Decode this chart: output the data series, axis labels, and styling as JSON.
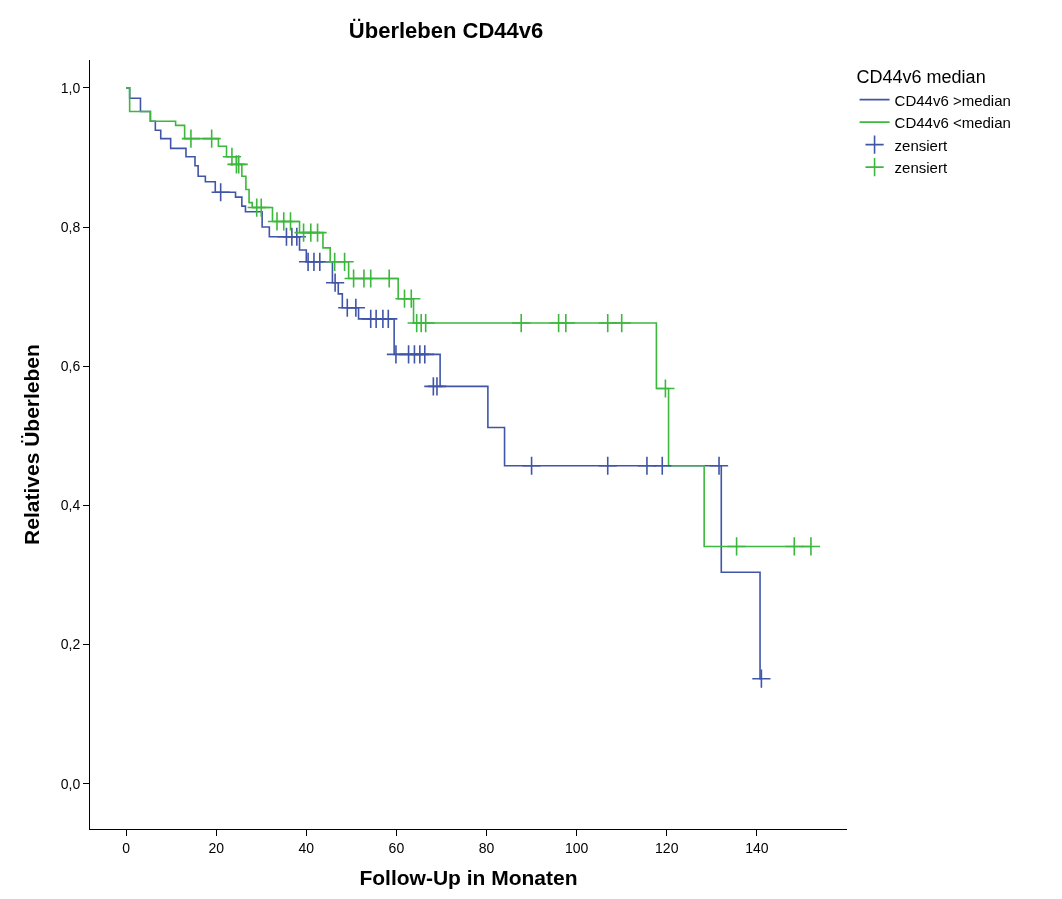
{
  "chart_data": {
    "type": "step",
    "title": "Überleben CD44v6",
    "xlabel": "Follow-Up in Monaten",
    "ylabel": "Relatives Überleben",
    "legend_title": "CD44v6 median",
    "xlim": [
      -8,
      160
    ],
    "xticks": [
      0,
      20,
      40,
      60,
      80,
      100,
      120,
      140
    ],
    "ylim": [
      -0.065,
      1.04
    ],
    "yticks": [
      {
        "value": 0,
        "label": "0,0"
      },
      {
        "value": 0.2,
        "label": "0,2"
      },
      {
        "value": 0.4,
        "label": "0,4"
      },
      {
        "value": 0.6,
        "label": "0,6"
      },
      {
        "value": 0.8,
        "label": "0,8"
      },
      {
        "value": 1.0,
        "label": "1,0"
      }
    ],
    "grid": false,
    "legend": "right",
    "line_style": "solid",
    "series": [
      {
        "name": "CD44v6 >median",
        "color": "#4055a8",
        "x": [
          0,
          0.8,
          3.2,
          5.4,
          6.5,
          7.7,
          9.9,
          13.3,
          15.3,
          16,
          17.6,
          19.8,
          24.3,
          25.7,
          26.5,
          30.2,
          31.8,
          38.5,
          40,
          45.8,
          47.1,
          48,
          51.6,
          59.5,
          69.7,
          80.3,
          84,
          132.1,
          140.7,
          141
        ],
        "values": [
          1.0,
          0.985,
          0.966,
          0.952,
          0.939,
          0.927,
          0.913,
          0.901,
          0.888,
          0.873,
          0.865,
          0.85,
          0.843,
          0.83,
          0.822,
          0.8,
          0.786,
          0.767,
          0.75,
          0.72,
          0.704,
          0.684,
          0.668,
          0.617,
          0.571,
          0.512,
          0.457,
          0.304,
          0.151,
          0.151
        ]
      },
      {
        "name": "CD44v6 <median",
        "color": "#3cb83c",
        "x": [
          0,
          0.8,
          5.4,
          11,
          13,
          20.5,
          22.3,
          24.5,
          25.7,
          26.6,
          27.3,
          28,
          32.5,
          38.5,
          43.7,
          45.3,
          49.4,
          60.4,
          63.8,
          117.7,
          120.4,
          128.3,
          152
        ],
        "values": [
          1.0,
          0.966,
          0.952,
          0.946,
          0.927,
          0.916,
          0.901,
          0.89,
          0.873,
          0.854,
          0.835,
          0.828,
          0.808,
          0.792,
          0.77,
          0.75,
          0.726,
          0.697,
          0.662,
          0.568,
          0.457,
          0.341,
          0.341
        ]
      },
      {
        "name": "zensiert",
        "type": "scatter",
        "marker": "cross",
        "color": "#4055a8",
        "x": [
          21,
          35.6,
          36.8,
          37.9,
          40.4,
          41.7,
          43,
          46.4,
          49.1,
          51,
          54.3,
          55.5,
          57,
          58.2,
          59.9,
          62.7,
          64,
          65.2,
          66.3,
          68.2,
          69,
          90,
          106.9,
          115.6,
          119,
          131.6,
          141
        ],
        "values": [
          0.85,
          0.786,
          0.786,
          0.786,
          0.75,
          0.75,
          0.75,
          0.72,
          0.684,
          0.684,
          0.668,
          0.668,
          0.668,
          0.668,
          0.617,
          0.617,
          0.617,
          0.617,
          0.617,
          0.571,
          0.571,
          0.457,
          0.457,
          0.457,
          0.457,
          0.457,
          0.151
        ]
      },
      {
        "name": "zensiert",
        "type": "scatter",
        "marker": "cross",
        "color": "#3cb83c",
        "x": [
          14.4,
          19,
          23.5,
          24.5,
          25,
          29,
          30,
          33.5,
          35,
          36.5,
          39.4,
          41,
          42.5,
          46.3,
          48.5,
          50.5,
          52.8,
          54.3,
          58.4,
          61.8,
          63.3,
          64.5,
          65.5,
          66.5,
          87.7,
          96,
          97.6,
          106.9,
          110,
          119.7,
          135.5,
          148.3,
          152
        ],
        "values": [
          0.927,
          0.927,
          0.901,
          0.89,
          0.89,
          0.828,
          0.828,
          0.808,
          0.808,
          0.808,
          0.792,
          0.792,
          0.792,
          0.75,
          0.75,
          0.726,
          0.726,
          0.726,
          0.726,
          0.697,
          0.697,
          0.662,
          0.662,
          0.662,
          0.662,
          0.662,
          0.662,
          0.662,
          0.662,
          0.568,
          0.341,
          0.341,
          0.341
        ]
      }
    ]
  }
}
